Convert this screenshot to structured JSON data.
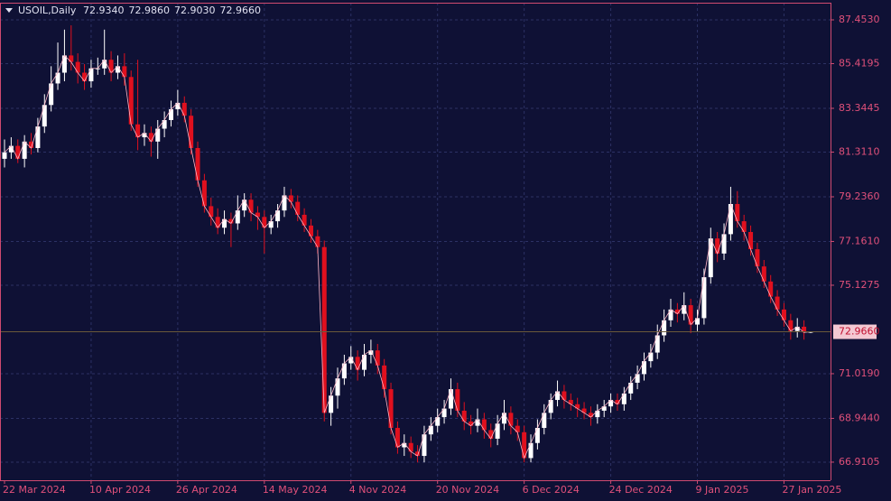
{
  "chart_data": {
    "type": "candlestick",
    "symbol": "USOIL,Daily",
    "quote": [
      "72.9340",
      "72.9860",
      "72.9030",
      "72.9660"
    ],
    "up_color": "#ffffff",
    "down_color": "#e0101e",
    "line_color": "#ffb6c6",
    "grid": true,
    "ylim": [
      66.07,
      88.25
    ],
    "yticks": [
      {
        "value": 66.9105,
        "label": "66.9105"
      },
      {
        "value": 68.944,
        "label": "68.9440"
      },
      {
        "value": 71.019,
        "label": "71.0190"
      },
      {
        "value": 75.1275,
        "label": "75.1275"
      },
      {
        "value": 77.161,
        "label": "77.1610"
      },
      {
        "value": 79.236,
        "label": "79.2360"
      },
      {
        "value": 81.311,
        "label": "81.3110"
      },
      {
        "value": 83.3445,
        "label": "83.3445"
      },
      {
        "value": 85.4195,
        "label": "85.4195"
      },
      {
        "value": 87.453,
        "label": "87.4530"
      }
    ],
    "current_price": {
      "value": 72.966,
      "label": "72.9660"
    },
    "categories": [
      "22 Mar 2024",
      null,
      null,
      null,
      null,
      null,
      null,
      null,
      null,
      null,
      null,
      null,
      null,
      "10 Apr 2024",
      null,
      null,
      null,
      null,
      null,
      null,
      null,
      null,
      null,
      null,
      null,
      null,
      "26 Apr 2024",
      null,
      null,
      null,
      null,
      null,
      null,
      null,
      null,
      null,
      null,
      null,
      null,
      "14 May 2024",
      null,
      null,
      null,
      null,
      null,
      null,
      null,
      null,
      null,
      null,
      null,
      null,
      "4 Nov 2024",
      null,
      null,
      null,
      null,
      null,
      null,
      null,
      null,
      null,
      null,
      null,
      null,
      "20 Nov 2024",
      null,
      null,
      null,
      null,
      null,
      null,
      null,
      null,
      null,
      null,
      null,
      null,
      "6 Dec 2024",
      null,
      null,
      null,
      null,
      null,
      null,
      null,
      null,
      null,
      null,
      null,
      null,
      "24 Dec 2024",
      null,
      null,
      null,
      null,
      null,
      null,
      null,
      null,
      null,
      null,
      null,
      null,
      "9 Jan 2025",
      null,
      null,
      null,
      null,
      null,
      null,
      null,
      null,
      null,
      null,
      null,
      null,
      "27 Jan 2025",
      null,
      null,
      null,
      null
    ],
    "ohlc": [
      [
        81.0,
        81.9,
        80.6,
        81.3
      ],
      [
        81.3,
        82.0,
        81.0,
        81.6
      ],
      [
        81.6,
        81.9,
        80.8,
        81.0
      ],
      [
        81.0,
        82.1,
        80.6,
        81.8
      ],
      [
        81.8,
        82.2,
        81.2,
        81.5
      ],
      [
        81.5,
        82.9,
        81.3,
        82.5
      ],
      [
        82.5,
        84.0,
        82.2,
        83.5
      ],
      [
        83.5,
        85.3,
        83.2,
        84.5
      ],
      [
        84.5,
        86.4,
        84.2,
        85.0
      ],
      [
        85.0,
        87.0,
        84.6,
        85.8
      ],
      [
        85.8,
        87.2,
        85.1,
        85.5
      ],
      [
        85.5,
        85.9,
        84.5,
        85.0
      ],
      [
        85.0,
        85.4,
        84.2,
        84.6
      ],
      [
        84.6,
        85.6,
        84.3,
        85.2
      ],
      [
        85.2,
        85.7,
        84.9,
        85.2
      ],
      [
        85.2,
        87.0,
        84.9,
        85.6
      ],
      [
        85.6,
        86.0,
        84.6,
        85.0
      ],
      [
        85.0,
        85.8,
        84.7,
        85.3
      ],
      [
        85.3,
        85.9,
        84.4,
        84.8
      ],
      [
        84.8,
        85.1,
        82.3,
        82.6
      ],
      [
        82.6,
        85.6,
        81.4,
        82.0
      ],
      [
        82.0,
        82.6,
        81.6,
        82.2
      ],
      [
        82.2,
        82.5,
        81.1,
        81.8
      ],
      [
        81.8,
        82.8,
        81.0,
        82.4
      ],
      [
        82.4,
        83.2,
        82.0,
        82.8
      ],
      [
        82.8,
        83.7,
        82.5,
        83.3
      ],
      [
        83.3,
        84.2,
        83.0,
        83.6
      ],
      [
        83.6,
        83.9,
        82.7,
        83.0
      ],
      [
        83.0,
        83.3,
        81.2,
        81.5
      ],
      [
        81.5,
        81.8,
        79.7,
        80.0
      ],
      [
        80.0,
        80.3,
        78.5,
        78.8
      ],
      [
        78.8,
        79.2,
        77.9,
        78.3
      ],
      [
        78.3,
        78.7,
        77.5,
        77.8
      ],
      [
        77.8,
        78.6,
        77.5,
        78.2
      ],
      [
        78.2,
        78.5,
        76.9,
        78.0
      ],
      [
        78.0,
        79.3,
        77.7,
        78.6
      ],
      [
        78.6,
        79.4,
        78.3,
        79.1
      ],
      [
        79.1,
        79.4,
        78.1,
        78.5
      ],
      [
        78.5,
        78.8,
        77.7,
        78.3
      ],
      [
        78.3,
        78.6,
        76.6,
        77.8
      ],
      [
        77.8,
        78.4,
        77.5,
        78.1
      ],
      [
        78.1,
        78.9,
        77.8,
        78.6
      ],
      [
        78.6,
        79.7,
        78.3,
        79.3
      ],
      [
        79.3,
        79.6,
        78.7,
        79.0
      ],
      [
        79.0,
        79.3,
        78.1,
        78.4
      ],
      [
        78.4,
        78.7,
        77.6,
        77.9
      ],
      [
        77.9,
        78.2,
        77.1,
        77.4
      ],
      [
        77.4,
        77.7,
        76.6,
        76.9
      ],
      [
        76.9,
        77.2,
        68.8,
        69.2
      ],
      [
        69.2,
        70.4,
        68.6,
        70.0
      ],
      [
        70.0,
        71.3,
        69.4,
        70.8
      ],
      [
        70.8,
        71.9,
        70.5,
        71.5
      ],
      [
        71.5,
        72.3,
        71.2,
        71.8
      ],
      [
        71.8,
        72.1,
        70.7,
        71.2
      ],
      [
        71.2,
        72.4,
        70.9,
        71.9
      ],
      [
        71.9,
        72.6,
        71.5,
        72.1
      ],
      [
        72.1,
        72.4,
        71.0,
        71.4
      ],
      [
        71.4,
        71.7,
        69.9,
        70.3
      ],
      [
        70.3,
        70.6,
        68.2,
        68.5
      ],
      [
        68.5,
        68.8,
        67.3,
        67.6
      ],
      [
        67.6,
        68.2,
        67.2,
        67.8
      ],
      [
        67.8,
        68.1,
        67.1,
        67.4
      ],
      [
        67.4,
        67.7,
        66.9,
        67.2
      ],
      [
        67.2,
        68.6,
        66.9,
        68.2
      ],
      [
        68.2,
        69.0,
        67.9,
        68.6
      ],
      [
        68.6,
        69.4,
        68.3,
        69.0
      ],
      [
        69.0,
        69.8,
        68.7,
        69.4
      ],
      [
        69.4,
        70.8,
        69.1,
        70.3
      ],
      [
        70.3,
        70.6,
        69.0,
        69.3
      ],
      [
        69.3,
        69.7,
        68.4,
        68.8
      ],
      [
        68.8,
        69.1,
        68.2,
        68.6
      ],
      [
        68.6,
        69.4,
        68.3,
        68.9
      ],
      [
        68.9,
        69.2,
        68.0,
        68.4
      ],
      [
        68.4,
        68.7,
        67.6,
        68.0
      ],
      [
        68.0,
        69.1,
        67.7,
        68.7
      ],
      [
        68.7,
        69.8,
        68.4,
        69.2
      ],
      [
        69.2,
        69.5,
        68.2,
        68.6
      ],
      [
        68.6,
        68.9,
        67.9,
        68.3
      ],
      [
        68.3,
        68.6,
        66.9,
        67.1
      ],
      [
        67.1,
        68.2,
        66.9,
        67.8
      ],
      [
        67.8,
        68.9,
        67.5,
        68.5
      ],
      [
        68.5,
        69.6,
        68.2,
        69.2
      ],
      [
        69.2,
        70.1,
        68.9,
        69.8
      ],
      [
        69.8,
        70.7,
        69.5,
        70.2
      ],
      [
        70.2,
        70.5,
        69.4,
        69.8
      ],
      [
        69.8,
        70.1,
        69.3,
        69.6
      ],
      [
        69.6,
        69.9,
        69.0,
        69.4
      ],
      [
        69.4,
        69.7,
        68.9,
        69.2
      ],
      [
        69.2,
        69.5,
        68.6,
        69.0
      ],
      [
        69.0,
        69.6,
        68.7,
        69.3
      ],
      [
        69.3,
        69.8,
        69.0,
        69.5
      ],
      [
        69.5,
        70.1,
        69.2,
        69.8
      ],
      [
        69.8,
        70.1,
        69.3,
        69.6
      ],
      [
        69.6,
        70.4,
        69.3,
        70.1
      ],
      [
        70.1,
        70.9,
        69.8,
        70.6
      ],
      [
        70.6,
        71.4,
        70.3,
        71.0
      ],
      [
        71.0,
        72.0,
        70.7,
        71.6
      ],
      [
        71.6,
        72.4,
        71.3,
        72.0
      ],
      [
        72.0,
        73.3,
        71.7,
        72.8
      ],
      [
        72.8,
        74.0,
        72.5,
        73.5
      ],
      [
        73.5,
        74.5,
        73.2,
        74.0
      ],
      [
        74.0,
        74.3,
        73.4,
        73.8
      ],
      [
        73.8,
        74.8,
        73.5,
        74.2
      ],
      [
        74.2,
        74.5,
        72.9,
        73.3
      ],
      [
        73.3,
        74.0,
        73.0,
        73.6
      ],
      [
        73.6,
        75.9,
        73.3,
        75.5
      ],
      [
        75.5,
        77.8,
        75.2,
        77.3
      ],
      [
        77.3,
        77.6,
        76.2,
        76.6
      ],
      [
        76.6,
        78.0,
        76.3,
        77.5
      ],
      [
        77.5,
        79.7,
        77.2,
        78.9
      ],
      [
        78.9,
        79.5,
        77.8,
        78.1
      ],
      [
        78.1,
        78.4,
        77.2,
        77.6
      ],
      [
        77.6,
        77.9,
        76.5,
        76.8
      ],
      [
        76.8,
        77.1,
        75.7,
        76.0
      ],
      [
        76.0,
        76.3,
        75.0,
        75.3
      ],
      [
        75.3,
        75.6,
        74.3,
        74.6
      ],
      [
        74.6,
        74.9,
        73.7,
        74.0
      ],
      [
        74.0,
        74.3,
        73.2,
        73.5
      ],
      [
        73.5,
        73.8,
        72.6,
        73.0
      ],
      [
        73.0,
        73.6,
        72.7,
        73.2
      ],
      [
        73.2,
        73.5,
        72.6,
        72.934
      ],
      [
        72.934,
        72.986,
        72.903,
        72.966
      ]
    ]
  }
}
